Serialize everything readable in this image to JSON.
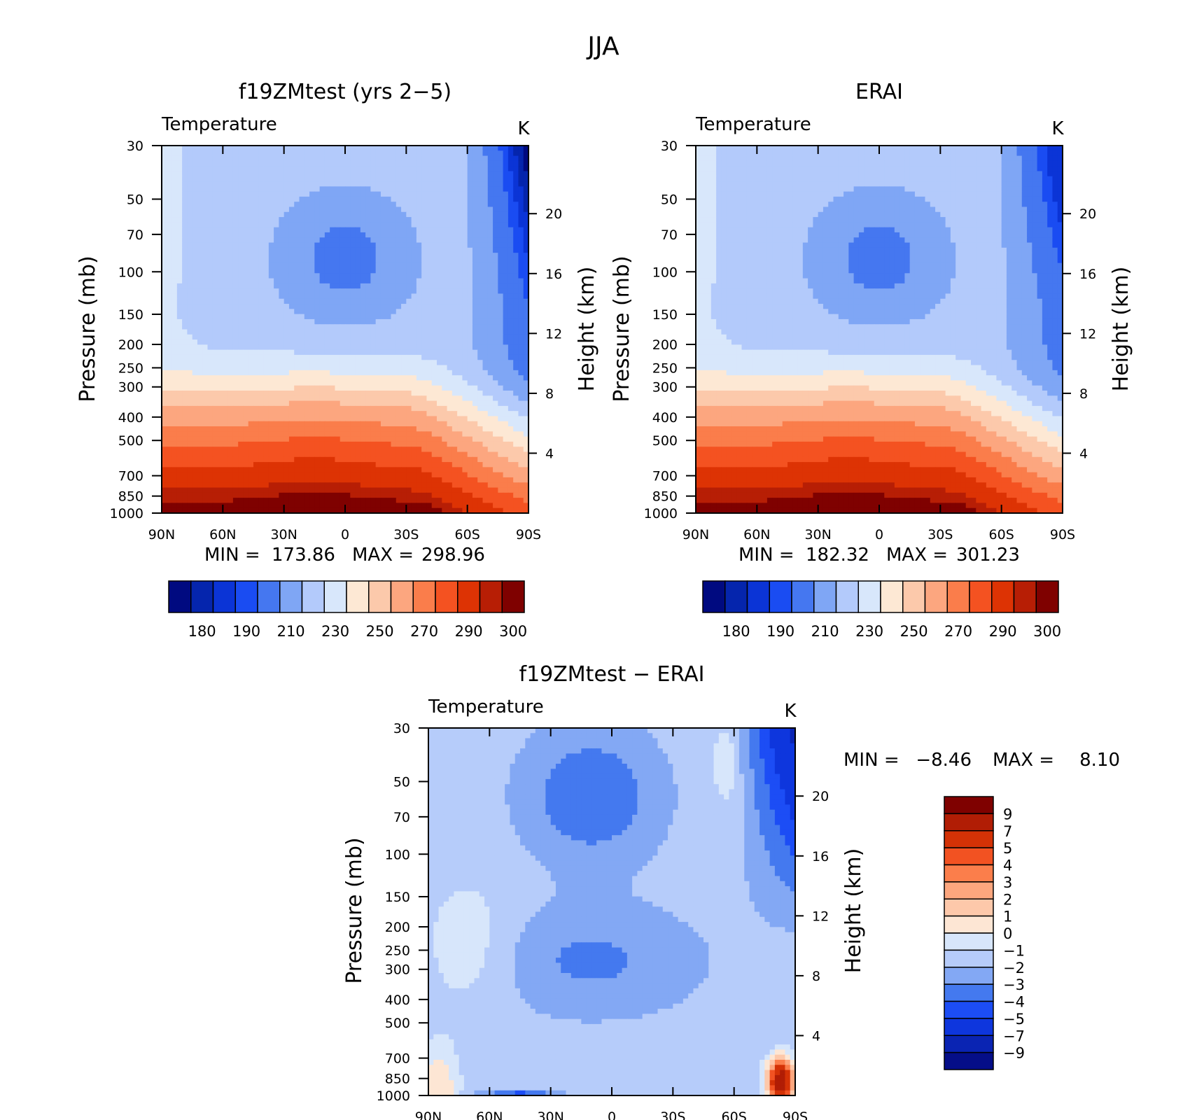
{
  "figure": {
    "title": "JJA"
  },
  "chart_data": [
    {
      "type": "contour",
      "id": "model",
      "title": "f19ZMtest (yrs 2−5)",
      "variable_label": "Temperature",
      "units_label": "K",
      "xlabel": "",
      "ylabel": "Pressure (mb)",
      "ylabel_right": "Height (km)",
      "x_ticks": [
        "90N",
        "60N",
        "30N",
        "0",
        "30S",
        "60S",
        "90S"
      ],
      "x_range": [
        90,
        -90
      ],
      "y_ticks": [
        30,
        50,
        70,
        100,
        150,
        200,
        250,
        300,
        400,
        500,
        700,
        850,
        1000
      ],
      "y_range": [
        30,
        1000
      ],
      "right_ticks": [
        20,
        16,
        12,
        8,
        4
      ],
      "min_label": "MIN =",
      "min_value": "173.86",
      "max_label": "MAX =",
      "max_value": "298.96",
      "field": {
        "kind": "temperature",
        "min": 173.86,
        "max": 298.96
      },
      "levels": [
        175,
        180,
        185,
        190,
        200,
        210,
        220,
        230,
        240,
        250,
        260,
        270,
        280,
        290,
        295,
        300
      ],
      "colorbar_labels": [
        "180",
        "190",
        "210",
        "230",
        "250",
        "270",
        "290",
        "300"
      ]
    },
    {
      "type": "contour",
      "id": "obs",
      "title": "ERAI",
      "variable_label": "Temperature",
      "units_label": "K",
      "xlabel": "",
      "ylabel": "Pressure (mb)",
      "ylabel_right": "Height (km)",
      "x_ticks": [
        "90N",
        "60N",
        "30N",
        "0",
        "30S",
        "60S",
        "90S"
      ],
      "x_range": [
        90,
        -90
      ],
      "y_ticks": [
        30,
        50,
        70,
        100,
        150,
        200,
        250,
        300,
        400,
        500,
        700,
        850,
        1000
      ],
      "y_range": [
        30,
        1000
      ],
      "right_ticks": [
        20,
        16,
        12,
        8,
        4
      ],
      "min_label": "MIN =",
      "min_value": "182.32",
      "max_label": "MAX =",
      "max_value": "301.23",
      "field": {
        "kind": "temperature",
        "min": 182.32,
        "max": 301.23
      },
      "levels": [
        175,
        180,
        185,
        190,
        200,
        210,
        220,
        230,
        240,
        250,
        260,
        270,
        280,
        290,
        295,
        300
      ],
      "colorbar_labels": [
        "180",
        "190",
        "210",
        "230",
        "250",
        "270",
        "290",
        "300"
      ]
    },
    {
      "type": "contour",
      "id": "diff",
      "title": "f19ZMtest − ERAI",
      "variable_label": "Temperature",
      "units_label": "K",
      "xlabel": "",
      "ylabel": "Pressure (mb)",
      "ylabel_right": "Height (km)",
      "x_ticks": [
        "90N",
        "60N",
        "30N",
        "0",
        "30S",
        "60S",
        "90S"
      ],
      "x_range": [
        90,
        -90
      ],
      "y_ticks": [
        30,
        50,
        70,
        100,
        150,
        200,
        250,
        300,
        400,
        500,
        700,
        850,
        1000
      ],
      "y_range": [
        30,
        1000
      ],
      "right_ticks": [
        20,
        16,
        12,
        8,
        4
      ],
      "min_label": "MIN =",
      "min_value": "−8.46",
      "max_label": "MAX =",
      "max_value": "8.10",
      "field": {
        "kind": "difference",
        "min": -8.46,
        "max": 8.1
      },
      "levels": [
        -9,
        -7,
        -5,
        -4,
        -3,
        -2,
        -1,
        0,
        1,
        2,
        3,
        4,
        5,
        7,
        9
      ],
      "colorbar_labels": [
        "9",
        "7",
        "5",
        "4",
        "3",
        "2",
        "1",
        "0",
        "−1",
        "−2",
        "−3",
        "−4",
        "−5",
        "−7",
        "−9"
      ]
    }
  ],
  "colors": {
    "temperature": [
      "#000a80",
      "#0525ad",
      "#0b34d6",
      "#1a4cf2",
      "#4577f0",
      "#7fa6f5",
      "#b3cafb",
      "#d8e7fb",
      "#fde8d4",
      "#fcc9ab",
      "#fca67f",
      "#fa7d4b",
      "#f45221",
      "#dd3304",
      "#b71e05",
      "#7f0100"
    ],
    "difference": [
      "#050e88",
      "#0a24b3",
      "#0e36dd",
      "#1c4df5",
      "#4479ef",
      "#83a8f4",
      "#b6ccfa",
      "#d7e6fb",
      "#fde6d4",
      "#fdc8aa",
      "#fca67e",
      "#fb7e4b",
      "#f25222",
      "#d43206",
      "#b11d05",
      "#7f0100"
    ]
  }
}
